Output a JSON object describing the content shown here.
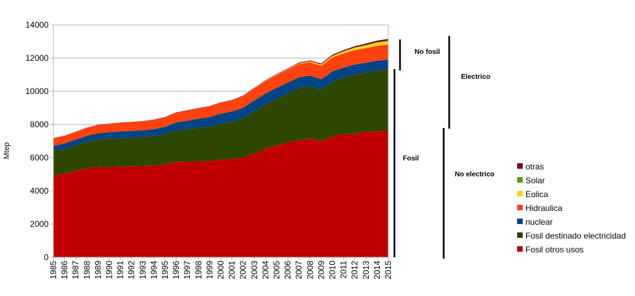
{
  "chart_data": {
    "type": "area",
    "stacked": true,
    "ylabel": "Mtep",
    "xlabel": "",
    "ylim": [
      0,
      14000
    ],
    "yticks": [
      0,
      2000,
      4000,
      6000,
      8000,
      10000,
      12000,
      14000
    ],
    "x": [
      1985,
      1986,
      1987,
      1988,
      1989,
      1990,
      1991,
      1992,
      1993,
      1994,
      1995,
      1996,
      1997,
      1998,
      1999,
      2000,
      2001,
      2002,
      2003,
      2004,
      2005,
      2006,
      2007,
      2008,
      2009,
      2010,
      2011,
      2012,
      2013,
      2014,
      2015
    ],
    "series": [
      {
        "name": "Fosil otros usos",
        "color": "#c00000",
        "values": [
          4950,
          5050,
          5200,
          5380,
          5420,
          5450,
          5470,
          5490,
          5500,
          5520,
          5600,
          5760,
          5770,
          5770,
          5820,
          5880,
          5930,
          6020,
          6250,
          6550,
          6750,
          6920,
          7050,
          7150,
          7000,
          7300,
          7420,
          7470,
          7560,
          7580,
          7650
        ]
      },
      {
        "name": "Fosil destinado electricidad",
        "color": "#2d4700",
        "values": [
          1450,
          1480,
          1550,
          1580,
          1680,
          1700,
          1720,
          1720,
          1740,
          1780,
          1820,
          1880,
          1950,
          2020,
          2050,
          2180,
          2230,
          2350,
          2550,
          2650,
          2800,
          2950,
          3150,
          3150,
          3100,
          3280,
          3400,
          3540,
          3560,
          3680,
          3680
        ]
      },
      {
        "name": "nuclear",
        "color": "#004586",
        "values": [
          320,
          330,
          340,
          360,
          370,
          380,
          390,
          400,
          410,
          420,
          440,
          480,
          510,
          560,
          580,
          600,
          620,
          640,
          650,
          660,
          660,
          650,
          650,
          650,
          630,
          620,
          610,
          600,
          600,
          590,
          580
        ]
      },
      {
        "name": "Hidraulica",
        "color": "#ff420e",
        "values": [
          450,
          460,
          470,
          480,
          500,
          510,
          520,
          530,
          540,
          560,
          570,
          590,
          610,
          620,
          630,
          650,
          670,
          690,
          720,
          750,
          760,
          780,
          790,
          800,
          810,
          840,
          850,
          870,
          880,
          890,
          900
        ]
      },
      {
        "name": "Eolica",
        "color": "#ffd320",
        "values": [
          0,
          0,
          0,
          0,
          0,
          0,
          0,
          0,
          0,
          0,
          0,
          0,
          0,
          0,
          0,
          0,
          5,
          10,
          15,
          20,
          25,
          30,
          40,
          55,
          70,
          90,
          115,
          145,
          165,
          190,
          210
        ]
      },
      {
        "name": "Solar",
        "color": "#579d1c",
        "values": [
          0,
          0,
          0,
          0,
          0,
          0,
          0,
          0,
          0,
          0,
          0,
          0,
          0,
          0,
          0,
          0,
          0,
          0,
          0,
          0,
          0,
          2,
          3,
          5,
          8,
          12,
          18,
          22,
          28,
          33,
          38
        ]
      },
      {
        "name": "otras",
        "color": "#7e0021",
        "values": [
          10,
          10,
          10,
          12,
          12,
          12,
          12,
          14,
          14,
          15,
          16,
          18,
          20,
          20,
          22,
          24,
          26,
          28,
          30,
          32,
          35,
          40,
          45,
          50,
          55,
          60,
          65,
          70,
          80,
          90,
          100
        ]
      }
    ],
    "annotations": [
      {
        "label": "No fosil"
      },
      {
        "label": "Electrico"
      },
      {
        "label": "Fosil"
      },
      {
        "label": "No electrico"
      }
    ]
  }
}
